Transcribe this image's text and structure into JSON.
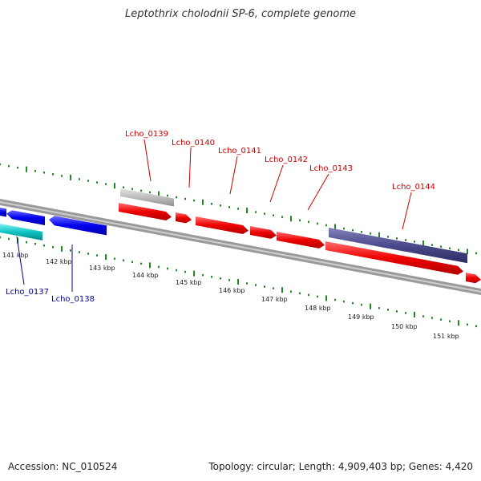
{
  "title": "Leptothrix cholodnii SP-6, complete genome",
  "footer": {
    "accession": "Accession: NC_010524",
    "stats": "Topology: circular; Length: 4,909,403 bp; Genes: 4,420"
  },
  "colors": {
    "forward_gene": "#ee0000",
    "reverse_gene": "#0000ee",
    "cyan_gene": "#00bbbb",
    "gray_gene": "#b8b8b8",
    "purple_gene": "#4b4a8c",
    "forward_label": "#cc0000",
    "reverse_label": "#000099",
    "tick": "#228822",
    "backbone": "#808080"
  },
  "ruler": {
    "unit": "kbp",
    "tick_labels": [
      "141 kbp",
      "142 kbp",
      "143 kbp",
      "144 kbp",
      "145 kbp",
      "146 kbp",
      "147 kbp",
      "148 kbp",
      "149 kbp",
      "150 kbp",
      "151 kbp"
    ]
  },
  "forward_genes": [
    {
      "label": "Lcho_0139",
      "kind": "gray"
    },
    {
      "label": "Lcho_0140",
      "kind": "forward"
    },
    {
      "label": "Lcho_0141",
      "kind": "forward"
    },
    {
      "label": "Lcho_0142",
      "kind": "forward"
    },
    {
      "label": "Lcho_0143",
      "kind": "forward"
    },
    {
      "label": "Lcho_0144",
      "kind": "purple"
    }
  ],
  "reverse_genes": [
    {
      "label": "Lcho_0137",
      "kind": "cyan"
    },
    {
      "label": "Lcho_0138",
      "kind": "reverse"
    }
  ]
}
